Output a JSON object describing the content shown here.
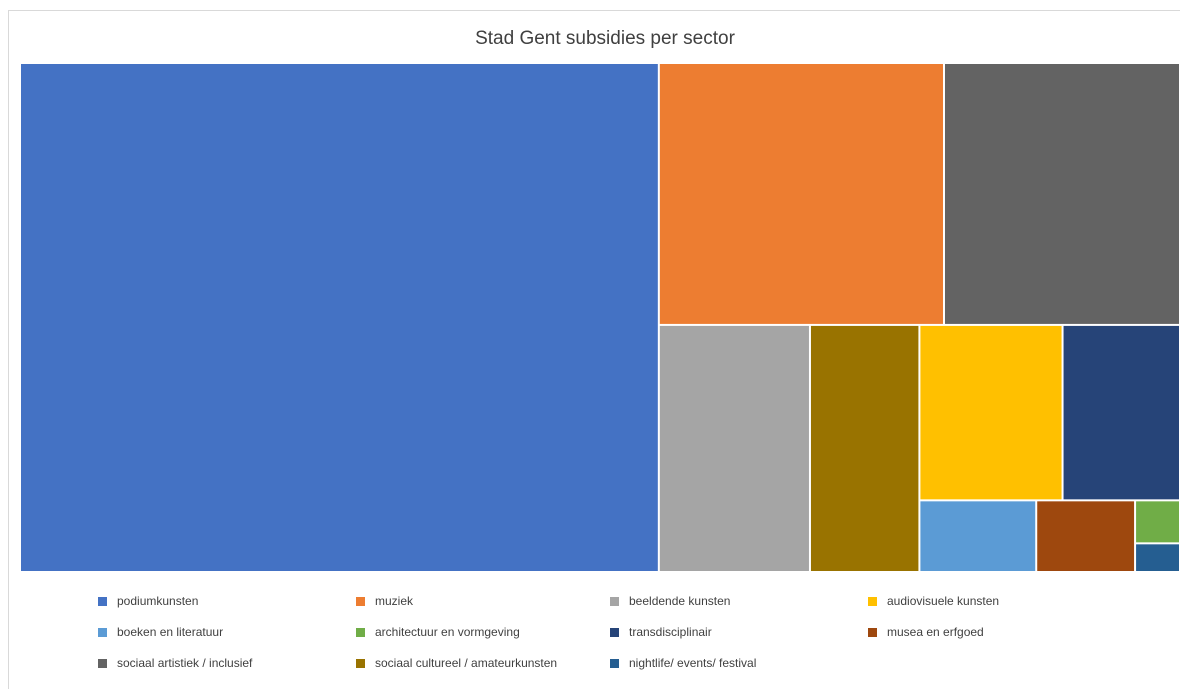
{
  "chart_data": {
    "type": "treemap",
    "title": "Stad Gent subsidies per sector",
    "legend_position": "bottom",
    "categories": [
      {
        "name": "podiumkunsten",
        "color": "#4472c4",
        "value": 50.5
      },
      {
        "name": "muziek",
        "color": "#ed7d31",
        "value": 11.6
      },
      {
        "name": "sociaal artistiek / inclusief",
        "color": "#636363",
        "value": 9.6
      },
      {
        "name": "beeldende kunsten",
        "color": "#a5a5a5",
        "value": 5.8
      },
      {
        "name": "sociaal cultureel / amateurkunsten",
        "color": "#997300",
        "value": 4.2
      },
      {
        "name": "audiovisuele kunsten",
        "color": "#ffc000",
        "value": 3.9
      },
      {
        "name": "transdisciplinair",
        "color": "#264478",
        "value": 3.2
      },
      {
        "name": "boeken en literatuur",
        "color": "#5b9bd5",
        "value": 1.3
      },
      {
        "name": "musea en erfgoed",
        "color": "#9e480e",
        "value": 1.1
      },
      {
        "name": "architectuur en vormgeving",
        "color": "#70ad47",
        "value": 0.3
      },
      {
        "name": "nightlife/ events/ festival",
        "color": "#255e91",
        "value": 0.2
      }
    ],
    "legend": [
      "podiumkunsten",
      "muziek",
      "beeldende kunsten",
      "audiovisuele kunsten",
      "boeken en literatuur",
      "architectuur en vormgeving",
      "transdisciplinair",
      "musea en erfgoed",
      "sociaal artistiek / inclusief",
      "sociaal cultureel / amateurkunsten",
      "nightlife/ events/ festival"
    ]
  }
}
